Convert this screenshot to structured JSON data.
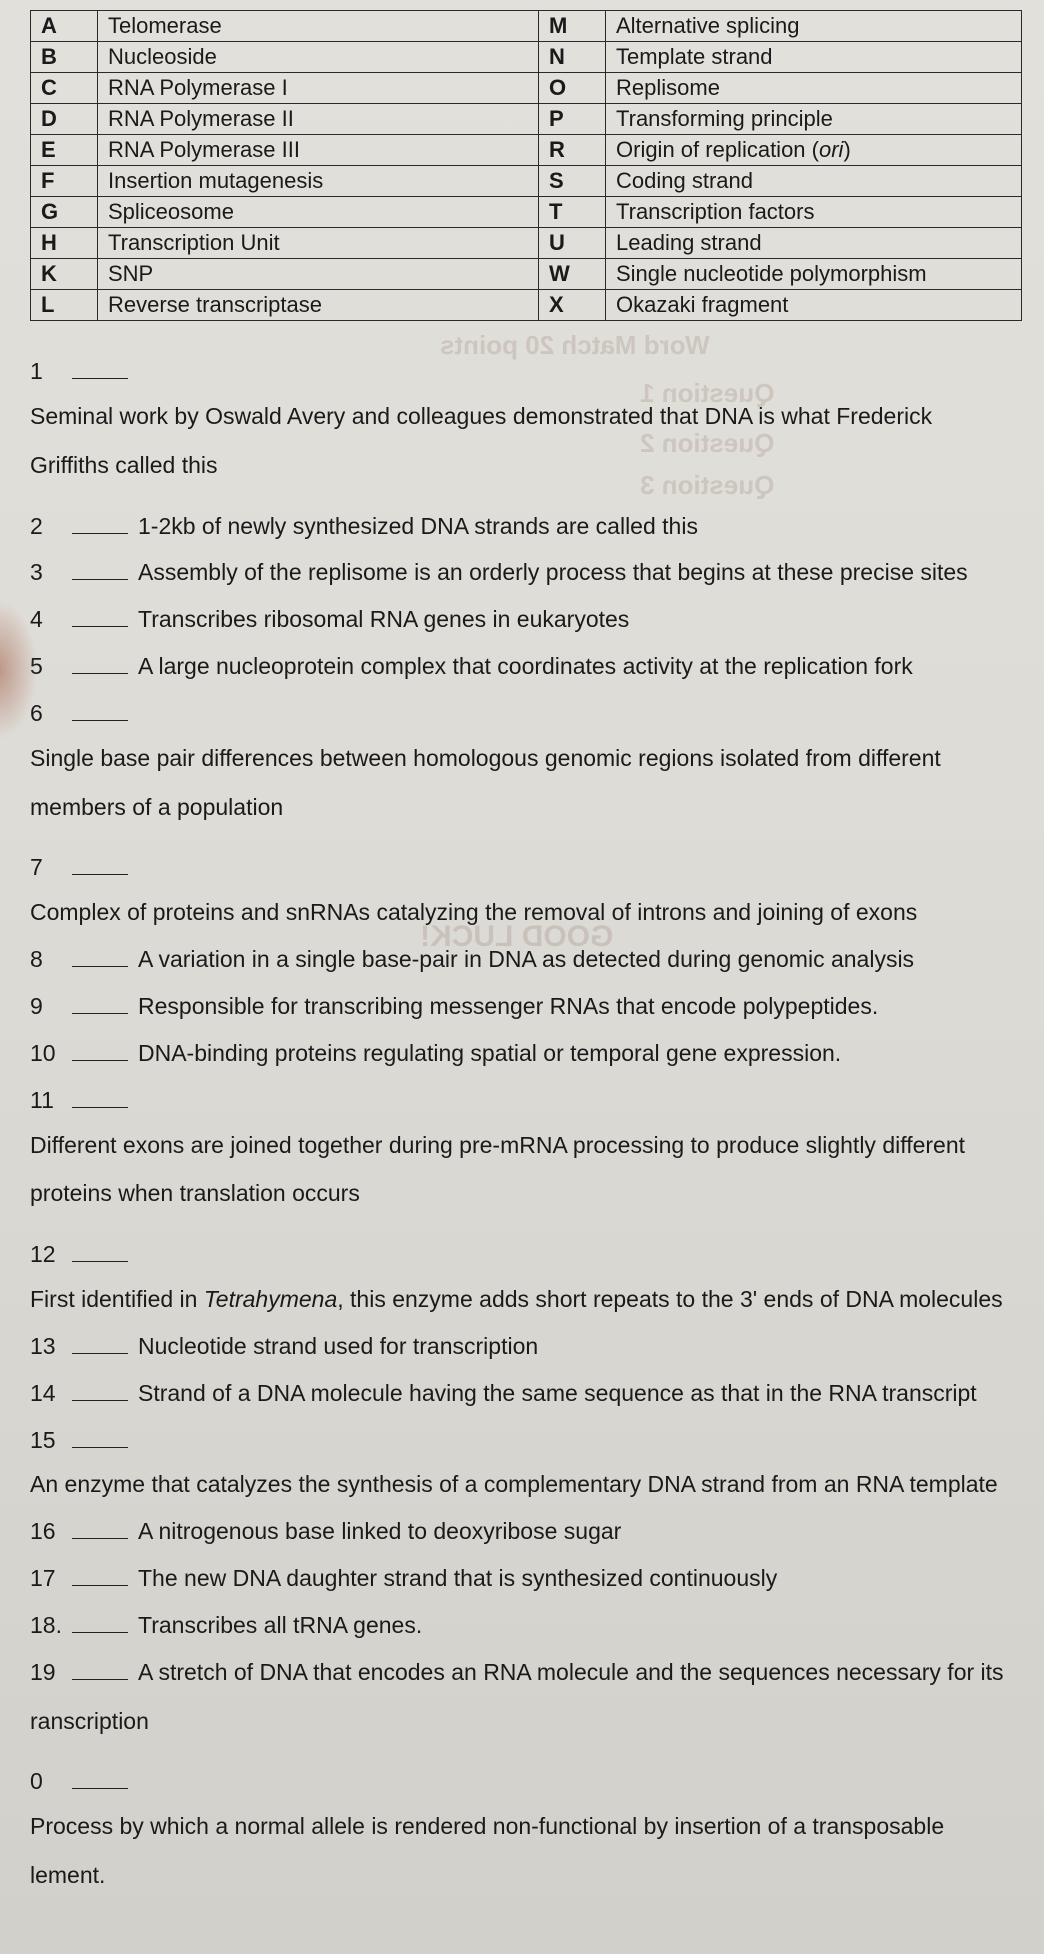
{
  "terms_left": [
    {
      "letter": "A",
      "term": "Telomerase"
    },
    {
      "letter": "B",
      "term": "Nucleoside"
    },
    {
      "letter": "C",
      "term": "RNA Polymerase I"
    },
    {
      "letter": "D",
      "term": "RNA Polymerase II"
    },
    {
      "letter": "E",
      "term": "RNA Polymerase III"
    },
    {
      "letter": "F",
      "term": "Insertion mutagenesis"
    },
    {
      "letter": "G",
      "term": "Spliceosome"
    },
    {
      "letter": "H",
      "term": "Transcription Unit"
    },
    {
      "letter": "K",
      "term": "SNP"
    },
    {
      "letter": "L",
      "term": "Reverse transcriptase"
    }
  ],
  "terms_right": [
    {
      "letter": "M",
      "term": "Alternative splicing"
    },
    {
      "letter": "N",
      "term": "Template strand"
    },
    {
      "letter": "O",
      "term": "Replisome"
    },
    {
      "letter": "P",
      "term": "Transforming principle"
    },
    {
      "letter": "R",
      "term_pre": "Origin of replication (",
      "term_it": "ori",
      "term_post": ")"
    },
    {
      "letter": "S",
      "term": "Coding strand"
    },
    {
      "letter": "T",
      "term": "Transcription factors"
    },
    {
      "letter": "U",
      "term": "Leading strand"
    },
    {
      "letter": "W",
      "term": "Single nucleotide polymorphism"
    },
    {
      "letter": "X",
      "term": "Okazaki fragment"
    }
  ],
  "questions": [
    {
      "n": "1",
      "clue": "Seminal work by Oswald Avery and colleagues demonstrated that DNA is what Frederick",
      "cont": "Griffiths called this"
    },
    {
      "n": "2",
      "clue": "1-2kb of newly synthesized DNA strands are called this"
    },
    {
      "n": "3",
      "clue": "Assembly of the replisome is an orderly process that begins at these precise sites"
    },
    {
      "n": "4",
      "clue": "Transcribes ribosomal RNA genes in eukaryotes"
    },
    {
      "n": "5",
      "clue": "A large nucleoprotein complex that coordinates activity at the replication fork"
    },
    {
      "n": "6",
      "clue": "Single base pair differences between homologous genomic regions isolated from different",
      "cont": "members of a population"
    },
    {
      "n": "7",
      "clue": "Complex of proteins and snRNAs catalyzing the removal of introns and joining of exons"
    },
    {
      "n": "8",
      "clue": "A variation in a single base-pair in DNA as detected during genomic analysis"
    },
    {
      "n": "9",
      "clue": "Responsible for transcribing messenger RNAs that encode polypeptides."
    },
    {
      "n": "10",
      "clue": "DNA-binding proteins regulating spatial or temporal gene expression."
    },
    {
      "n": "11",
      "clue": "Different exons are joined together during pre-mRNA processing to produce slightly different",
      "cont": "proteins when translation occurs"
    },
    {
      "n": "12",
      "clue_pre": "First identified in ",
      "clue_it": "Tetrahymena",
      "clue_post": ", this enzyme adds short repeats to the 3' ends of DNA molecules"
    },
    {
      "n": "13",
      "clue": "Nucleotide strand used for transcription"
    },
    {
      "n": "14",
      "clue": "Strand of a DNA molecule having the same sequence as that in the RNA transcript"
    },
    {
      "n": "15",
      "clue": "An enzyme that catalyzes the synthesis of a complementary DNA strand from an RNA template"
    },
    {
      "n": "16",
      "clue": "A nitrogenous base linked to deoxyribose sugar"
    },
    {
      "n": "17",
      "clue": "The new DNA daughter strand that is synthesized continuously"
    },
    {
      "n": "18.",
      "clue": "Transcribes all tRNA genes."
    },
    {
      "n": "19",
      "clue": "A stretch of DNA that encodes an RNA molecule and the sequences necessary for its",
      "cont": "ranscription"
    },
    {
      "n": "0",
      "clue": "Process by which a normal allele is rendered non-functional by insertion of a transposable",
      "cont": "lement."
    }
  ],
  "ghost": {
    "g1": "Word Match    20 points",
    "g2": "Question 1",
    "g3": "Question 2",
    "g4": "Question 3",
    "g5": "GOOD LUCK!"
  }
}
